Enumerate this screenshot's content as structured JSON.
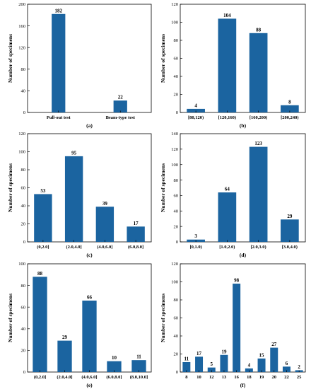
{
  "chart_data": [
    {
      "panel": "(a)",
      "type": "bar",
      "categories": [
        "Pull-out test",
        "Beam-type test"
      ],
      "values": [
        182,
        22
      ],
      "ylabel": "Number of specimens",
      "ylim": [
        0,
        200
      ],
      "yticks": [
        0,
        40,
        80,
        120,
        160,
        200
      ],
      "bar_color": "#1b64a0"
    },
    {
      "panel": "(b)",
      "type": "bar",
      "categories": [
        "[80,120)",
        "[120,160)",
        "[160,200)",
        "[200,240)"
      ],
      "values": [
        4,
        104,
        88,
        8
      ],
      "ylabel": "Number of specimens",
      "ylim": [
        0,
        120
      ],
      "yticks": [
        0,
        20,
        40,
        60,
        80,
        100,
        120
      ],
      "bar_color": "#1b64a0"
    },
    {
      "panel": "(c)",
      "type": "bar",
      "categories": [
        "(0,2.0]",
        "(2.0,4.0]",
        "(4.0,6.0]",
        "(6.0,8.0]"
      ],
      "values": [
        53,
        95,
        39,
        17
      ],
      "ylabel": "Number of specimens",
      "ylim": [
        0,
        120
      ],
      "yticks": [
        0,
        20,
        40,
        60,
        80,
        100,
        120
      ],
      "bar_color": "#1b64a0"
    },
    {
      "panel": "(d)",
      "type": "bar",
      "categories": [
        "[0,1.0)",
        "[1.0,2.0)",
        "[2.0,3.0)",
        "[3.0,4.0)"
      ],
      "values": [
        3,
        64,
        123,
        29
      ],
      "ylabel": "Number of specimens",
      "ylim": [
        0,
        140
      ],
      "yticks": [
        0,
        20,
        40,
        60,
        80,
        100,
        120,
        140
      ],
      "bar_color": "#1b64a0"
    },
    {
      "panel": "(e)",
      "type": "bar",
      "categories": [
        "(0,2.0]",
        "(2.0,4.0]",
        "(4.0,6.0]",
        "(6.0,8.0]",
        "(8.0,10.0]"
      ],
      "values": [
        88,
        29,
        66,
        10,
        11
      ],
      "ylabel": "Number of specimens",
      "ylim": [
        0,
        100
      ],
      "yticks": [
        0,
        20,
        40,
        60,
        80,
        100
      ],
      "bar_color": "#1b64a0"
    },
    {
      "panel": "(f)",
      "type": "bar",
      "categories": [
        "8",
        "10",
        "12",
        "13",
        "16",
        "18",
        "19",
        "20",
        "22",
        "25"
      ],
      "values": [
        11,
        17,
        5,
        19,
        98,
        4,
        15,
        27,
        6,
        2
      ],
      "ylabel": "Number of specimens",
      "ylim": [
        0,
        120
      ],
      "yticks": [
        0,
        20,
        40,
        60,
        80,
        100,
        120
      ],
      "bar_color": "#1b64a0"
    }
  ]
}
